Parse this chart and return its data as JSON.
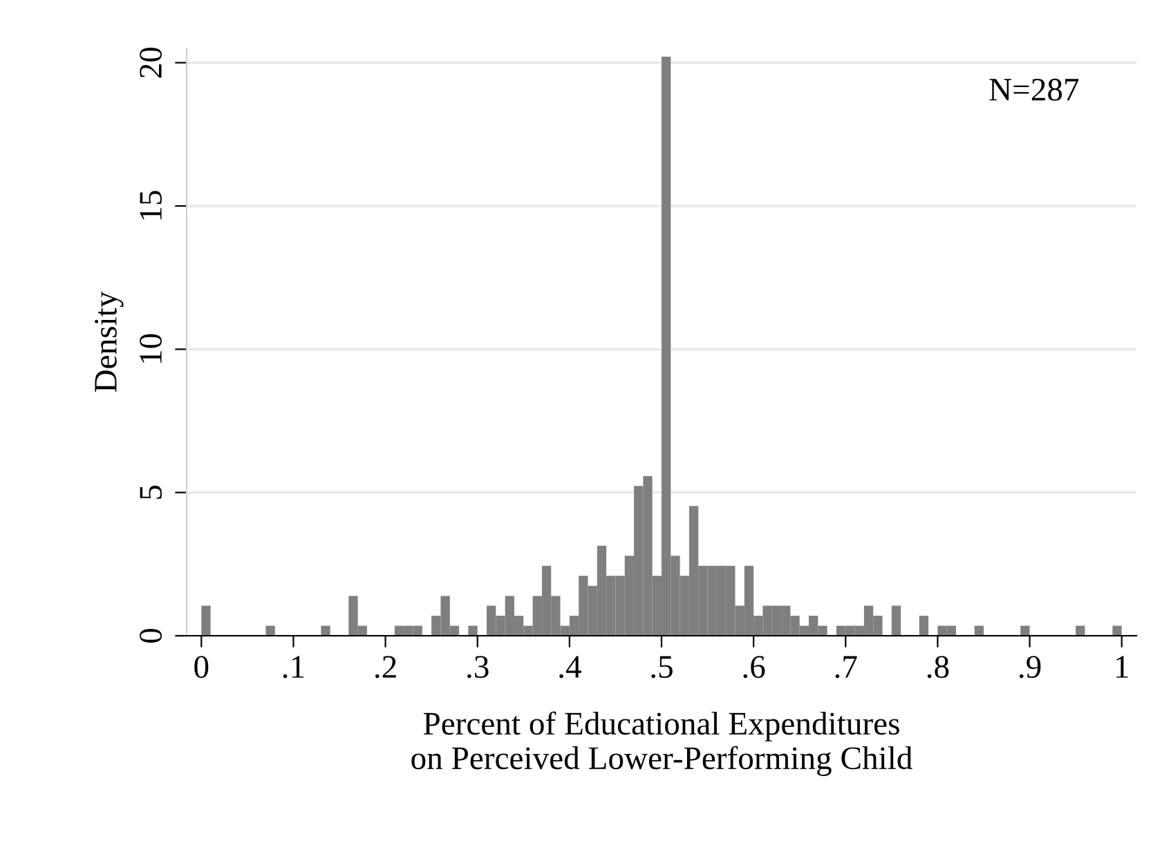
{
  "chart_data": {
    "type": "histogram",
    "xlabel": "Percent of Educational Expenditures\non Perceived Lower-Performing Child",
    "ylabel": "Density",
    "annotations": [
      "N=287"
    ],
    "bins": [
      0,
      0.01,
      0.02,
      0.03,
      0.04,
      0.05,
      0.06,
      0.07,
      0.08,
      0.09,
      0.1,
      0.11,
      0.12,
      0.13,
      0.14,
      0.15,
      0.16,
      0.17,
      0.18,
      0.19,
      0.2,
      0.21,
      0.22,
      0.23,
      0.24,
      0.25,
      0.26,
      0.27,
      0.28,
      0.29,
      0.3,
      0.31,
      0.32,
      0.33,
      0.34,
      0.35,
      0.36,
      0.37,
      0.38,
      0.39,
      0.4,
      0.41,
      0.42,
      0.43,
      0.44,
      0.45,
      0.46,
      0.47,
      0.48,
      0.49,
      0.5,
      0.51,
      0.52,
      0.53,
      0.54,
      0.55,
      0.56,
      0.57,
      0.58,
      0.59,
      0.6,
      0.61,
      0.62,
      0.63,
      0.64,
      0.65,
      0.66,
      0.67,
      0.68,
      0.69,
      0.7,
      0.71,
      0.72,
      0.73,
      0.74,
      0.75,
      0.76,
      0.77,
      0.78,
      0.79,
      0.8,
      0.81,
      0.82,
      0.83,
      0.84,
      0.85,
      0.86,
      0.87,
      0.88,
      0.89,
      0.9,
      0.91,
      0.92,
      0.93,
      0.94,
      0.95,
      0.96,
      0.97,
      0.98,
      0.99,
      1
    ],
    "values": [
      1.05,
      0,
      0,
      0,
      0,
      0,
      0,
      0.35,
      0,
      0,
      0,
      0,
      0,
      0.35,
      0,
      0,
      1.39,
      0.35,
      0,
      0,
      0,
      0.35,
      0.35,
      0.35,
      0,
      0.7,
      1.39,
      0.35,
      0,
      0.35,
      0,
      1.05,
      0.7,
      1.39,
      0.7,
      0.35,
      1.39,
      2.44,
      1.39,
      0.35,
      0.7,
      2.09,
      1.74,
      3.14,
      2.09,
      2.09,
      2.79,
      5.23,
      5.57,
      2.09,
      20.21,
      2.79,
      2.09,
      4.53,
      2.44,
      2.44,
      2.44,
      2.44,
      1.05,
      2.44,
      0.7,
      1.05,
      1.05,
      1.05,
      0.7,
      0.35,
      0.7,
      0.35,
      0,
      0.35,
      0.35,
      0.35,
      1.05,
      0.7,
      0,
      1.05,
      0,
      0,
      0.7,
      0,
      0.35,
      0.35,
      0,
      0,
      0.35,
      0,
      0,
      0,
      0,
      0.35,
      0,
      0,
      0,
      0,
      0,
      0.35,
      0,
      0,
      0,
      0.35
    ],
    "color": "#7f7f7f",
    "xlim": [
      -0.016,
      1.016
    ],
    "ylim": [
      0,
      20.5
    ],
    "xticks": [
      0,
      {
        "value": 0.1,
        "label": ".1"
      },
      {
        "value": 0.2,
        "label": ".2"
      },
      {
        "value": 0.3,
        "label": ".3"
      },
      {
        "value": 0.4,
        "label": ".4"
      },
      {
        "value": 0.5,
        "label": ".5"
      },
      {
        "value": 0.6,
        "label": ".6"
      },
      {
        "value": 0.7,
        "label": ".7"
      },
      {
        "value": 0.8,
        "label": ".8"
      },
      {
        "value": 0.9,
        "label": ".9"
      },
      1
    ],
    "yticks": [
      0,
      5,
      10,
      15,
      20
    ],
    "grid": "y"
  }
}
